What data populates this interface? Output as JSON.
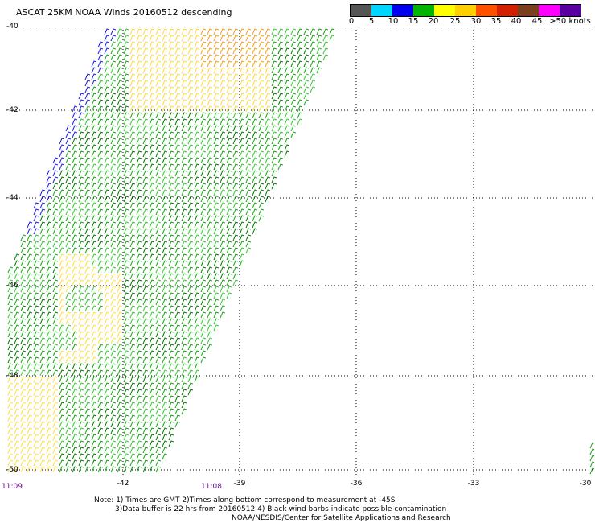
{
  "title": "ASCAT 25KM NOAA Winds 20160512 descending",
  "legend": {
    "colors": [
      "#555555",
      "#00d5ff",
      "#0000f0",
      "#00b400",
      "#ffff00",
      "#ffd000",
      "#ff5000",
      "#d22000",
      "#7a3f1e",
      "#ff00ff",
      "#5a00a0"
    ],
    "labels": [
      "0",
      "5",
      "10",
      "15",
      "20",
      "25",
      "30",
      "35",
      "40",
      "45",
      ">50 knots"
    ]
  },
  "lat_labels": [
    "-40",
    "-42",
    "-44",
    "-46",
    "-48",
    "-50"
  ],
  "lon_labels": [
    "-42",
    "-39",
    "-36",
    "-33",
    "-30"
  ],
  "time_labels": [
    "11:09",
    "11:08"
  ],
  "notes": [
    "Note: 1) Times are GMT 2)Times along bottom correspond to measurement at -45S",
    "3)Data buffer is 22 hrs from 20160512 4) Black wind barbs indicate possible contamination",
    "NOAA/NESDIS/Center for Satellite Applications and Research"
  ]
}
